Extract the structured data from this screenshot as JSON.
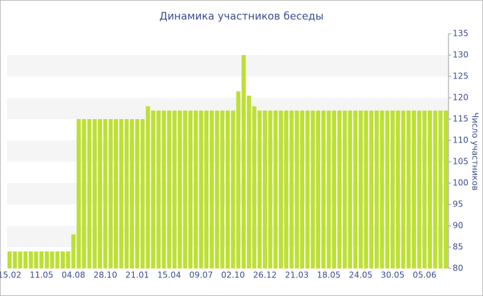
{
  "chart_data": {
    "type": "bar",
    "title": "Динамика участников беседы",
    "y_axis_label": "Число участников",
    "categories": [
      "15.02",
      null,
      null,
      null,
      null,
      null,
      "11.05",
      null,
      null,
      null,
      null,
      null,
      "04.08",
      null,
      null,
      null,
      null,
      null,
      "28.10",
      null,
      null,
      null,
      null,
      null,
      "21.01",
      null,
      null,
      null,
      null,
      null,
      "15.04",
      null,
      null,
      null,
      null,
      null,
      "09.07",
      null,
      null,
      null,
      null,
      null,
      "02.10",
      null,
      null,
      null,
      null,
      null,
      "26.12",
      null,
      null,
      null,
      null,
      null,
      "21.03",
      null,
      null,
      null,
      null,
      null,
      "18.05",
      null,
      null,
      null,
      null,
      null,
      "24.05",
      null,
      null,
      null,
      null,
      null,
      "30.05",
      null,
      null,
      null,
      null,
      null,
      "05.06",
      null,
      null,
      null,
      null
    ],
    "values": [
      84,
      84,
      84,
      84,
      84,
      84,
      84,
      84,
      84,
      84,
      84,
      84,
      88,
      115,
      115,
      115,
      115,
      115,
      115,
      115,
      115,
      115,
      115,
      115,
      115,
      115,
      118,
      117,
      117,
      117,
      117,
      117,
      117,
      117,
      117,
      117,
      117,
      117,
      117,
      117,
      117,
      117,
      117,
      121.5,
      130,
      120.5,
      118,
      117,
      117,
      117,
      117,
      117,
      117,
      117,
      117,
      117,
      117,
      117,
      117,
      117,
      117,
      117,
      117,
      117,
      117,
      117,
      117,
      117,
      117,
      117,
      117,
      117,
      117,
      117,
      117,
      117,
      117,
      117,
      117,
      117,
      117,
      117,
      117
    ],
    "color": "#bde033",
    "ylim": [
      80,
      135
    ],
    "yticks": [
      80,
      85,
      90,
      95,
      100,
      105,
      110,
      115,
      120,
      125,
      130,
      135
    ],
    "grid": "bands"
  }
}
